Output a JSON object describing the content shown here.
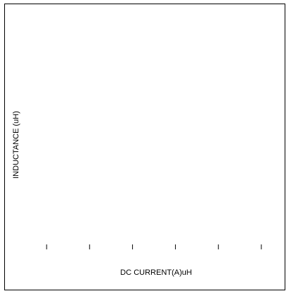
{
  "chart_data": {
    "type": "line",
    "title": "",
    "xlabel": "DC CURRENT(A)uH",
    "ylabel": "INDUCTANCE (uH)",
    "x_tick_count": 6,
    "x_tick_labels": [],
    "series": [],
    "grid": false,
    "legend": "none",
    "colors": {
      "frame": "#000000",
      "text": "#000000",
      "background": "#ffffff"
    }
  }
}
